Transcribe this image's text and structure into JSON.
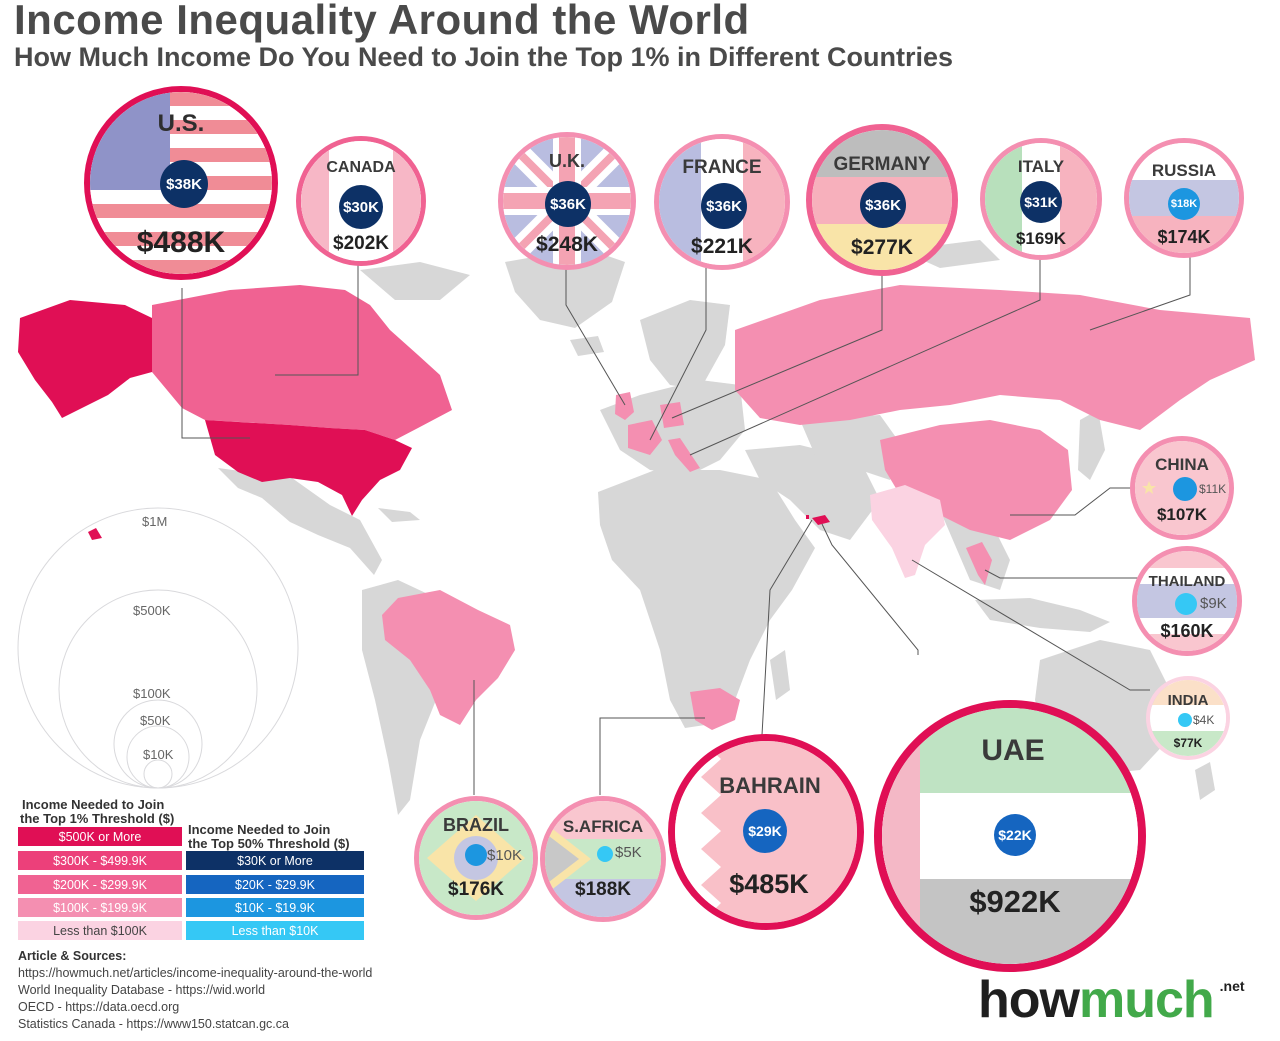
{
  "title": "Income Inequality Around the World",
  "subtitle": "How Much Income Do You Need to Join the Top 1% in Different Countries",
  "colors": {
    "land": "#d7d7d7",
    "top1": [
      "#e00f55",
      "#ec407a",
      "#f06292",
      "#f48fb1",
      "#fbd3e2"
    ],
    "top50": [
      "#0d3166",
      "#1565c0",
      "#1c96e0",
      "#35c8f5"
    ]
  },
  "countries": {
    "us": {
      "name": "U.S.",
      "top1": "$488K",
      "top50": "$38K"
    },
    "canada": {
      "name": "CANADA",
      "top1": "$202K",
      "top50": "$30K"
    },
    "uk": {
      "name": "U.K.",
      "top1": "$248K",
      "top50": "$36K"
    },
    "france": {
      "name": "FRANCE",
      "top1": "$221K",
      "top50": "$36K"
    },
    "germany": {
      "name": "GERMANY",
      "top1": "$277K",
      "top50": "$36K"
    },
    "italy": {
      "name": "ITALY",
      "top1": "$169K",
      "top50": "$31K"
    },
    "russia": {
      "name": "RUSSIA",
      "top1": "$174K",
      "top50": "$18K"
    },
    "china": {
      "name": "CHINA",
      "top1": "$107K",
      "top50": "$11K"
    },
    "thailand": {
      "name": "THAILAND",
      "top1": "$160K",
      "top50": "$9K"
    },
    "india": {
      "name": "INDIA",
      "top1": "$77K",
      "top50": "$4K"
    },
    "uae": {
      "name": "UAE",
      "top1": "$922K",
      "top50": "$22K"
    },
    "bahrain": {
      "name": "BAHRAIN",
      "top1": "$485K",
      "top50": "$29K"
    },
    "safrica": {
      "name": "S.AFRICA",
      "top1": "$188K",
      "top50": "$5K"
    },
    "brazil": {
      "name": "BRAZIL",
      "top1": "$176K",
      "top50": "$10K"
    }
  },
  "scale": {
    "l1m": "$1M",
    "l500k": "$500K",
    "l100k": "$100K",
    "l50k": "$50K",
    "l10k": "$10K"
  },
  "legend": {
    "top1_head_1": "Income Needed to Join",
    "top1_head_2": "the Top 1% Threshold ($)",
    "top1_items": [
      "$500K or More",
      "$300K - $499.9K",
      "$200K - $299.9K",
      "$100K - $199.9K",
      "Less than $100K"
    ],
    "top50_head_1": "Income Needed to Join",
    "top50_head_2": "the Top 50% Threshold ($)",
    "top50_items": [
      "$30K or More",
      "$20K - $29.9K",
      "$10K - $19.9K",
      "Less than $10K"
    ]
  },
  "sources": {
    "heading": "Article & Sources:",
    "lines": [
      "https://howmuch.net/articles/income-inequality-around-the-world",
      "World Inequality Database - https://wid.world",
      "OECD - https://data.oecd.org",
      "Statistics Canada - https://www150.statcan.gc.ca"
    ]
  },
  "brand": {
    "how": "how",
    "much": "much",
    "net": ".net"
  }
}
